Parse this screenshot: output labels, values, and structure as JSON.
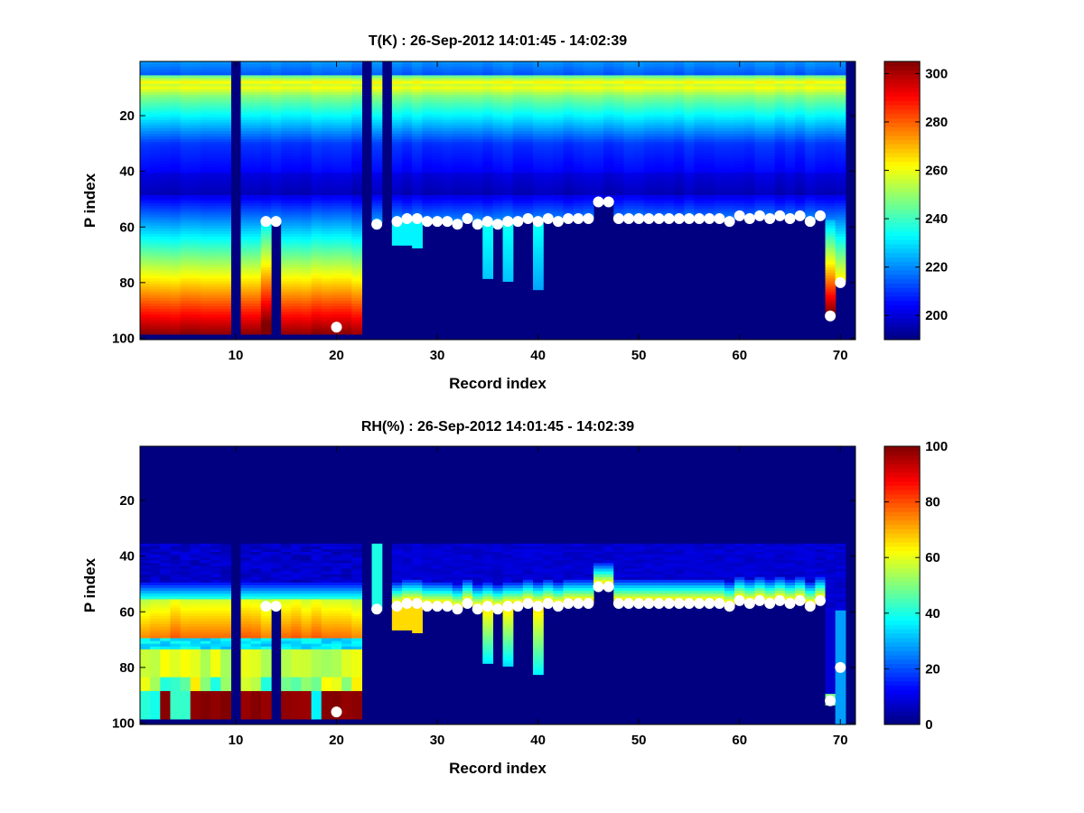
{
  "chart_data": [
    {
      "type": "heatmap",
      "title": "T(K) : 26-Sep-2012 14:01:45 - 14:02:39",
      "xlabel": "Record index",
      "ylabel": "P index",
      "xlim": [
        1,
        71
      ],
      "ylim": [
        1,
        100
      ],
      "xticks": [
        "10",
        "20",
        "30",
        "40",
        "50",
        "60",
        "70"
      ],
      "yticks": [
        "20",
        "40",
        "60",
        "80",
        "100"
      ],
      "colorbar": {
        "min": 190,
        "max": 305,
        "ticks": [
          "200",
          "220",
          "240",
          "260",
          "280",
          "300"
        ]
      },
      "field": "temperature",
      "cloud_markers": [
        {
          "x": 13,
          "y": 58
        },
        {
          "x": 14,
          "y": 58
        },
        {
          "x": 20,
          "y": 96
        },
        {
          "x": 24,
          "y": 59
        },
        {
          "x": 26,
          "y": 58
        },
        {
          "x": 27,
          "y": 57
        },
        {
          "x": 28,
          "y": 57
        },
        {
          "x": 29,
          "y": 58
        },
        {
          "x": 30,
          "y": 58
        },
        {
          "x": 31,
          "y": 58
        },
        {
          "x": 32,
          "y": 59
        },
        {
          "x": 33,
          "y": 57
        },
        {
          "x": 34,
          "y": 59
        },
        {
          "x": 35,
          "y": 58
        },
        {
          "x": 36,
          "y": 59
        },
        {
          "x": 37,
          "y": 58
        },
        {
          "x": 38,
          "y": 58
        },
        {
          "x": 39,
          "y": 57
        },
        {
          "x": 40,
          "y": 58
        },
        {
          "x": 41,
          "y": 57
        },
        {
          "x": 42,
          "y": 58
        },
        {
          "x": 43,
          "y": 57
        },
        {
          "x": 44,
          "y": 57
        },
        {
          "x": 45,
          "y": 57
        },
        {
          "x": 46,
          "y": 51
        },
        {
          "x": 47,
          "y": 51
        },
        {
          "x": 48,
          "y": 57
        },
        {
          "x": 49,
          "y": 57
        },
        {
          "x": 50,
          "y": 57
        },
        {
          "x": 51,
          "y": 57
        },
        {
          "x": 52,
          "y": 57
        },
        {
          "x": 53,
          "y": 57
        },
        {
          "x": 54,
          "y": 57
        },
        {
          "x": 55,
          "y": 57
        },
        {
          "x": 56,
          "y": 57
        },
        {
          "x": 57,
          "y": 57
        },
        {
          "x": 58,
          "y": 57
        },
        {
          "x": 59,
          "y": 58
        },
        {
          "x": 60,
          "y": 56
        },
        {
          "x": 61,
          "y": 57
        },
        {
          "x": 62,
          "y": 56
        },
        {
          "x": 63,
          "y": 57
        },
        {
          "x": 64,
          "y": 56
        },
        {
          "x": 65,
          "y": 57
        },
        {
          "x": 66,
          "y": 56
        },
        {
          "x": 67,
          "y": 58
        },
        {
          "x": 68,
          "y": 56
        },
        {
          "x": 69,
          "y": 92
        },
        {
          "x": 70,
          "y": 80
        }
      ]
    },
    {
      "type": "heatmap",
      "title": "RH(%) : 26-Sep-2012 14:01:45 - 14:02:39",
      "xlabel": "Record index",
      "ylabel": "P index",
      "xlim": [
        1,
        71
      ],
      "ylim": [
        1,
        100
      ],
      "xticks": [
        "10",
        "20",
        "30",
        "40",
        "50",
        "60",
        "70"
      ],
      "yticks": [
        "20",
        "40",
        "60",
        "80",
        "100"
      ],
      "colorbar": {
        "min": 0,
        "max": 100,
        "ticks": [
          "0",
          "20",
          "40",
          "60",
          "80",
          "100"
        ]
      },
      "field": "humidity",
      "cloud_markers": [
        {
          "x": 13,
          "y": 58
        },
        {
          "x": 14,
          "y": 58
        },
        {
          "x": 20,
          "y": 96
        },
        {
          "x": 24,
          "y": 59
        },
        {
          "x": 26,
          "y": 58
        },
        {
          "x": 27,
          "y": 57
        },
        {
          "x": 28,
          "y": 57
        },
        {
          "x": 29,
          "y": 58
        },
        {
          "x": 30,
          "y": 58
        },
        {
          "x": 31,
          "y": 58
        },
        {
          "x": 32,
          "y": 59
        },
        {
          "x": 33,
          "y": 57
        },
        {
          "x": 34,
          "y": 59
        },
        {
          "x": 35,
          "y": 58
        },
        {
          "x": 36,
          "y": 59
        },
        {
          "x": 37,
          "y": 58
        },
        {
          "x": 38,
          "y": 58
        },
        {
          "x": 39,
          "y": 57
        },
        {
          "x": 40,
          "y": 58
        },
        {
          "x": 41,
          "y": 57
        },
        {
          "x": 42,
          "y": 58
        },
        {
          "x": 43,
          "y": 57
        },
        {
          "x": 44,
          "y": 57
        },
        {
          "x": 45,
          "y": 57
        },
        {
          "x": 46,
          "y": 51
        },
        {
          "x": 47,
          "y": 51
        },
        {
          "x": 48,
          "y": 57
        },
        {
          "x": 49,
          "y": 57
        },
        {
          "x": 50,
          "y": 57
        },
        {
          "x": 51,
          "y": 57
        },
        {
          "x": 52,
          "y": 57
        },
        {
          "x": 53,
          "y": 57
        },
        {
          "x": 54,
          "y": 57
        },
        {
          "x": 55,
          "y": 57
        },
        {
          "x": 56,
          "y": 57
        },
        {
          "x": 57,
          "y": 57
        },
        {
          "x": 58,
          "y": 57
        },
        {
          "x": 59,
          "y": 58
        },
        {
          "x": 60,
          "y": 56
        },
        {
          "x": 61,
          "y": 57
        },
        {
          "x": 62,
          "y": 56
        },
        {
          "x": 63,
          "y": 57
        },
        {
          "x": 64,
          "y": 56
        },
        {
          "x": 65,
          "y": 57
        },
        {
          "x": 66,
          "y": 56
        },
        {
          "x": 67,
          "y": 58
        },
        {
          "x": 68,
          "y": 56
        },
        {
          "x": 69,
          "y": 92
        },
        {
          "x": 70,
          "y": 80
        }
      ]
    }
  ]
}
